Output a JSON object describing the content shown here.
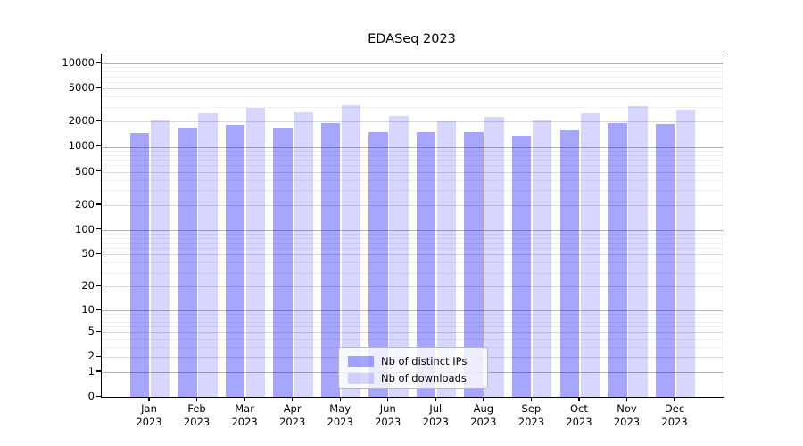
{
  "figure": {
    "title": "EDASeq 2023"
  },
  "chart_data": {
    "type": "bar",
    "title": "EDASeq 2023",
    "x_categories": [
      "Jan",
      "Feb",
      "Mar",
      "Apr",
      "May",
      "Jun",
      "Jul",
      "Aug",
      "Sep",
      "Oct",
      "Nov",
      "Dec"
    ],
    "x_year": "2023",
    "series": [
      {
        "name": "Nb of distinct IPs",
        "color": "rgba(0,0,255,0.35)",
        "values": [
          1450,
          1700,
          1850,
          1650,
          1920,
          1520,
          1500,
          1500,
          1350,
          1560,
          1920,
          1890
        ]
      },
      {
        "name": "Nb of downloads",
        "color": "rgba(0,0,255,0.16)",
        "values": [
          2050,
          2500,
          2950,
          2600,
          3150,
          2320,
          2000,
          2300,
          2050,
          2500,
          3070,
          2780
        ]
      }
    ],
    "y_ticks": [
      0,
      1,
      2,
      5,
      10,
      20,
      50,
      100,
      200,
      500,
      1000,
      2000,
      5000,
      10000
    ],
    "y_scale": "log10(value+1)",
    "y_top": 12800,
    "ylim": [
      0,
      12800
    ],
    "grid": true,
    "legend_position": "lower center inside",
    "colors": {
      "major_grid": "#b3b3b3",
      "mid_grid": "#dadada",
      "minor_grid": "#efefef",
      "spine": "#000000",
      "background": "#ffffff"
    }
  }
}
